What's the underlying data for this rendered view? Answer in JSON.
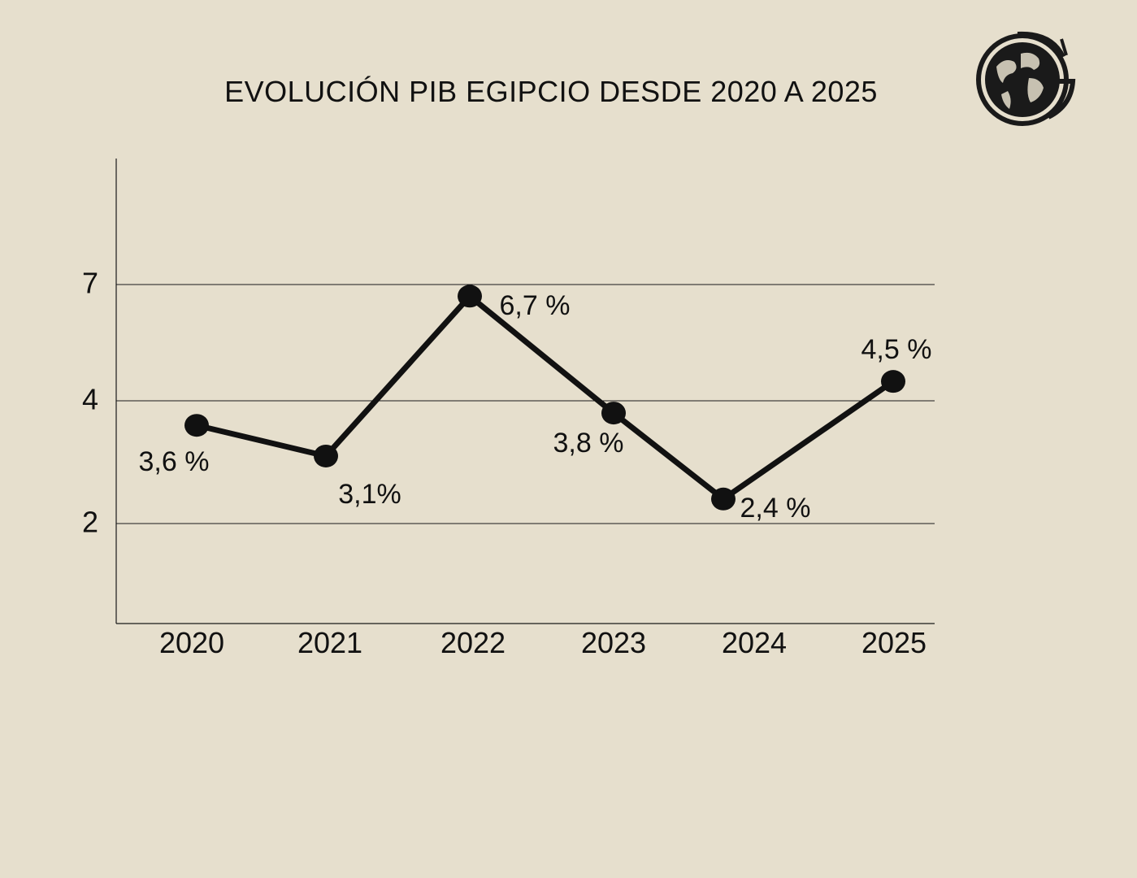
{
  "chart_data": {
    "type": "line",
    "title": "EVOLUCIÓN PIB EGIPCIO DESDE 2020 A 2025",
    "xlabel": "",
    "ylabel": "",
    "categories": [
      "2020",
      "2021",
      "2022",
      "2023",
      "2024",
      "2025"
    ],
    "series": [
      {
        "values": [
          3.6,
          3.1,
          6.7,
          3.8,
          2.4,
          4.5
        ],
        "data_labels": [
          "3,6 %",
          "3,1%",
          "6,7 %",
          "3,8 %",
          "2,4 %",
          "4,5 %"
        ]
      }
    ],
    "y_ticks": [
      {
        "value": 2,
        "label": "2"
      },
      {
        "value": 4,
        "label": "4"
      },
      {
        "value": 7,
        "label": "7"
      }
    ],
    "grid": "horizontal",
    "legend": "none",
    "colors": {
      "background": "#e6dfcd",
      "line": "#111111",
      "grid": "#1a1a1a"
    }
  },
  "logo": {
    "name": "globe-g-logo"
  }
}
